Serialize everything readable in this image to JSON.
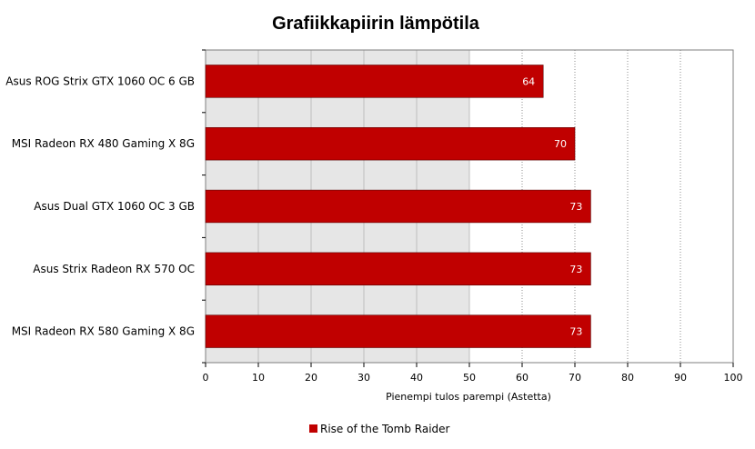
{
  "chart_data": {
    "type": "bar",
    "orientation": "horizontal",
    "title": "Grafiikkapiirin lämpötila",
    "xlabel": "Pienempi tulos parempi (Astetta)",
    "categories": [
      "Asus ROG Strix  GTX 1060 OC 6 GB",
      "MSI Radeon RX 480 Gaming X 8G",
      "Asus Dual GTX 1060 OC 3 GB",
      "Asus Strix Radeon RX 570 OC",
      "MSI Radeon RX 580 Gaming X 8G"
    ],
    "series": [
      {
        "name": "Rise of the Tomb Raider",
        "values": [
          64,
          70,
          73,
          73,
          73
        ],
        "color": "#c00000"
      }
    ],
    "xlim": [
      0,
      100
    ],
    "xticks": [
      0,
      10,
      20,
      30,
      40,
      50,
      60,
      70,
      80,
      90,
      100
    ],
    "grid": "vertical dotted",
    "legend_position": "bottom",
    "data_labels": true,
    "colors": {
      "bar": "#c00000",
      "plot_bg_band": "#e6e6e6",
      "plot_bg": "#ffffff"
    }
  }
}
